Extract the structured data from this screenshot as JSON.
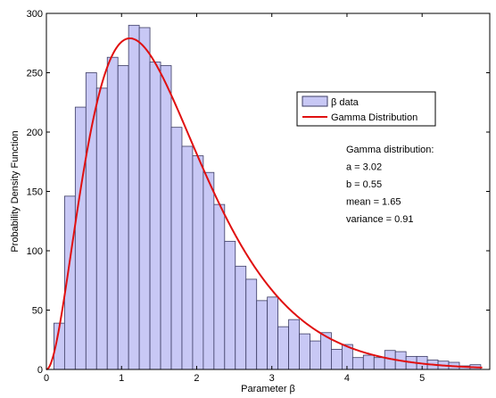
{
  "chart_data": {
    "type": "bar",
    "title": "",
    "xlabel": "Parameter β",
    "ylabel": "Probability Density Function",
    "xlim": [
      0,
      5.9
    ],
    "ylim": [
      0,
      300
    ],
    "xticks": [
      0,
      1,
      2,
      3,
      4,
      5
    ],
    "yticks": [
      0,
      50,
      100,
      150,
      200,
      250,
      300
    ],
    "grid": false,
    "legend_position": "top-right",
    "histogram": {
      "name": "β data",
      "color": "#c8c8f5",
      "edge_color": "#3c3c64",
      "bin_width": 0.142,
      "bin_starts": [
        0.1,
        0.242,
        0.384,
        0.526,
        0.668,
        0.81,
        0.952,
        1.094,
        1.236,
        1.378,
        1.52,
        1.662,
        1.804,
        1.946,
        2.088,
        2.23,
        2.372,
        2.514,
        2.656,
        2.798,
        2.94,
        3.082,
        3.224,
        3.366,
        3.508,
        3.65,
        3.792,
        3.934,
        4.076,
        4.218,
        4.36,
        4.502,
        4.644,
        4.786,
        4.928,
        5.07,
        5.212,
        5.354,
        5.496,
        5.638
      ],
      "values": [
        39,
        146,
        221,
        250,
        237,
        263,
        256,
        290,
        288,
        259,
        256,
        204,
        188,
        180,
        166,
        139,
        108,
        87,
        76,
        58,
        61,
        36,
        42,
        30,
        24,
        31,
        17,
        21,
        10,
        12,
        10,
        16,
        15,
        11,
        11,
        8,
        7,
        6,
        3,
        4
      ]
    },
    "fit": {
      "name": "Gamma Distribution",
      "color": "#e01010",
      "shape_a": 3.02,
      "scale_b": 0.55,
      "peak": 279
    },
    "legend": [
      "β data",
      "Gamma Distribution"
    ],
    "annotations": [
      "Gamma distribution:",
      "a = 3.02",
      "b = 0.55",
      "mean = 1.65",
      "variance = 0.91"
    ]
  }
}
